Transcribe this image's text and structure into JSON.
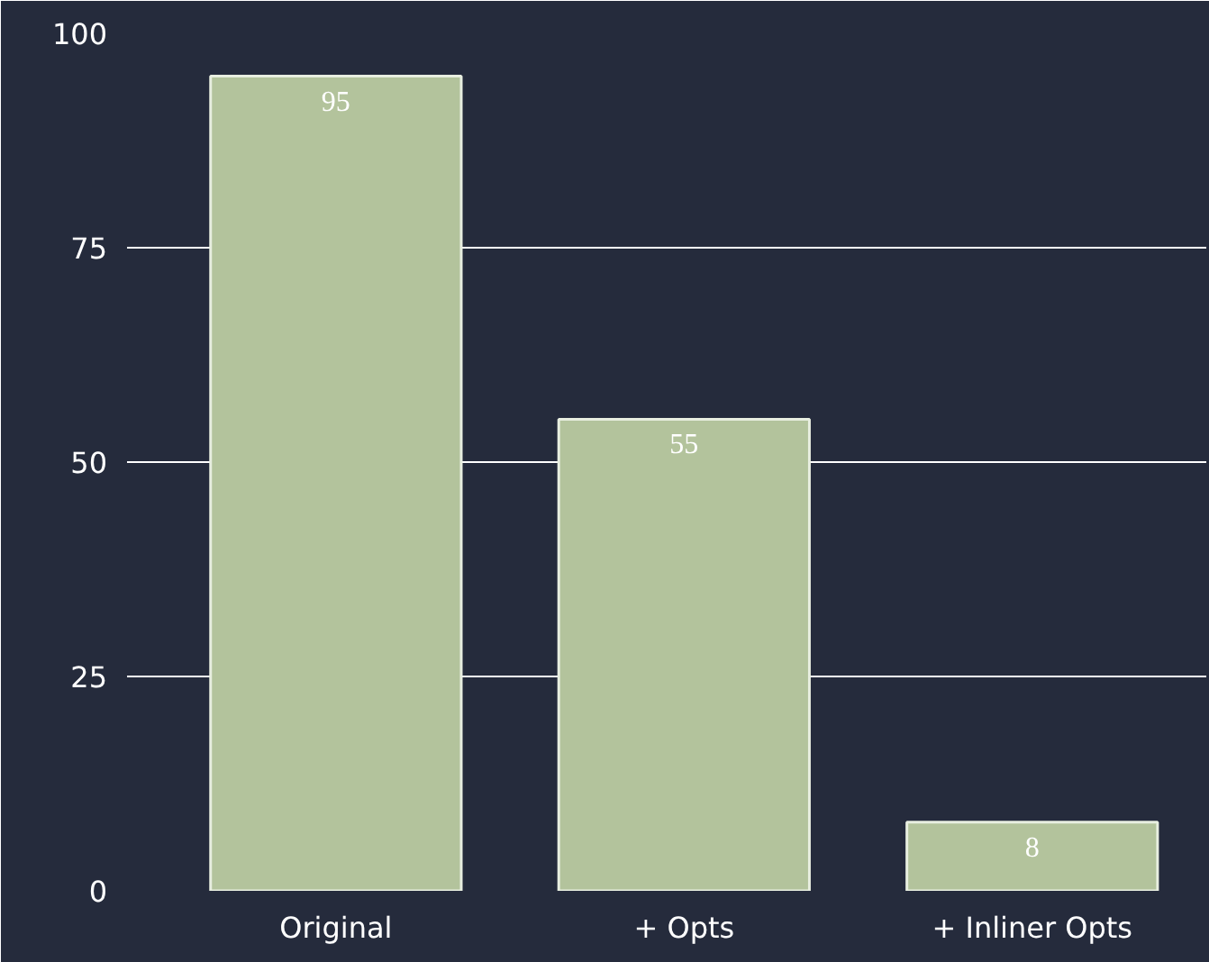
{
  "chart_data": {
    "type": "bar",
    "categories": [
      "Original",
      "+ Opts",
      "+ Inliner Opts"
    ],
    "values": [
      95,
      55,
      8
    ],
    "color": "#b3c39c",
    "ylim": [
      0,
      100
    ],
    "yticks": [
      0,
      25,
      50,
      75,
      100
    ],
    "grid": "y",
    "data_labels": true
  }
}
